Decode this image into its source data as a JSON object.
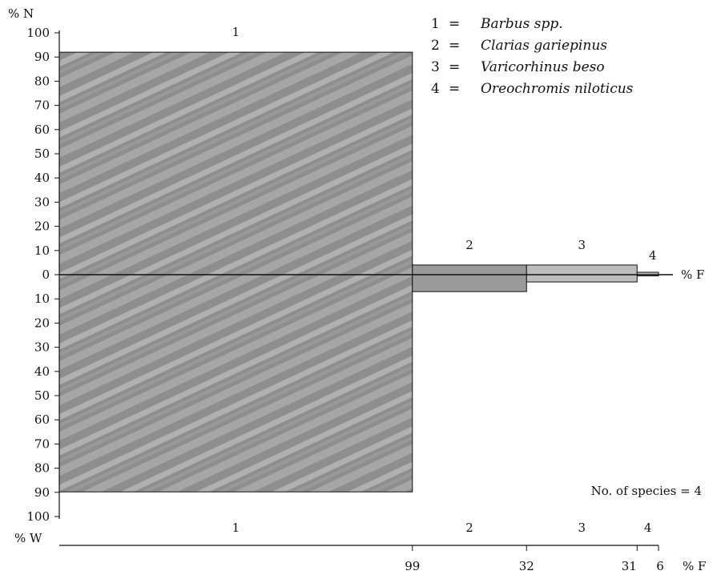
{
  "chart_data": {
    "type": "bar",
    "y_axis_label": "% N",
    "y_ticks_up": [
      "100",
      "90",
      "80",
      "70",
      "60",
      "50",
      "40",
      "30",
      "20",
      "10",
      "0"
    ],
    "y_ticks_down": [
      "10",
      "20",
      "30",
      "40",
      "50",
      "60",
      "70",
      "80",
      "90",
      "100"
    ],
    "x_axis_label": "% F",
    "w_axis_label": "% W",
    "ylim_N": [
      0,
      100
    ],
    "ylim_W": [
      0,
      100
    ],
    "series": [
      {
        "id": "1",
        "pct_N": 92,
        "pct_W": 89.8,
        "pct_F": 99,
        "f_label": "99"
      },
      {
        "id": "2",
        "pct_N": 4,
        "pct_W": 7,
        "pct_F": 32,
        "f_label": "32"
      },
      {
        "id": "3",
        "pct_N": 4,
        "pct_W": 3,
        "pct_F": 31,
        "f_label": "31"
      },
      {
        "id": "4",
        "pct_N": 1,
        "pct_W": 0.5,
        "pct_F": 6,
        "f_label": "6"
      }
    ],
    "legend": [
      {
        "num": "1",
        "eq": "=",
        "name": "Barbus spp."
      },
      {
        "num": "2",
        "eq": "=",
        "name": "Clarias gariepinus"
      },
      {
        "num": "3",
        "eq": "=",
        "name": "Varicorhinus beso"
      },
      {
        "num": "4",
        "eq": "=",
        "name": "Oreochromis niloticus"
      }
    ],
    "annotation": "No. of species = 4",
    "bar_fill": "#9a9a9a",
    "bar_fill_light": "#bdbdbd",
    "axis_color": "#111111"
  }
}
